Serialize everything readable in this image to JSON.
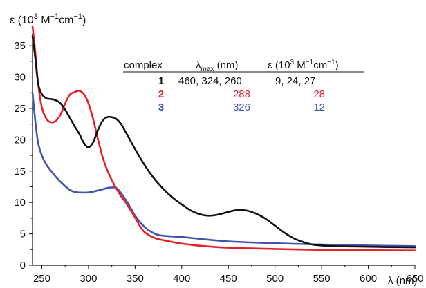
{
  "chart_data": {
    "type": "line",
    "ylabel_parts": {
      "pre": "ε (10",
      "exp1": "3",
      "mid": " M",
      "exp2": "−1",
      "cm": "cm",
      "exp3": "−1",
      "post": ")"
    },
    "xlabel": "λ (nm)",
    "xlim": [
      240,
      650
    ],
    "ylim": [
      0,
      37
    ],
    "xticks": [
      250,
      300,
      350,
      400,
      450,
      500,
      550,
      600,
      650
    ],
    "yticks": [
      0,
      5,
      10,
      15,
      20,
      25,
      30,
      35
    ],
    "grid": false,
    "legend": "table, top-right",
    "series": [
      {
        "name": "1",
        "color": "#111111",
        "x": [
          240,
          243,
          246,
          250,
          255,
          260,
          265,
          270,
          275,
          280,
          285,
          290,
          295,
          300,
          305,
          310,
          315,
          320,
          325,
          330,
          335,
          340,
          350,
          360,
          370,
          380,
          390,
          400,
          410,
          420,
          430,
          440,
          450,
          460,
          470,
          480,
          490,
          500,
          510,
          520,
          530,
          540,
          550,
          560,
          580,
          600,
          620,
          650
        ],
        "y": [
          36.5,
          33,
          29,
          27.3,
          26.6,
          26.5,
          26.3,
          25.8,
          24.8,
          23.5,
          22.2,
          21,
          19.5,
          18.8,
          19.6,
          21.5,
          23,
          23.6,
          23.6,
          23.3,
          22.5,
          21.2,
          18.5,
          16,
          13.9,
          12.2,
          10.8,
          9.7,
          8.7,
          8.1,
          7.9,
          8.1,
          8.5,
          8.8,
          8.7,
          8.2,
          7.4,
          6.3,
          5.2,
          4.3,
          3.7,
          3.3,
          3.15,
          3.05,
          3.0,
          2.95,
          2.9,
          2.85
        ]
      },
      {
        "name": "2",
        "color": "#e8202a",
        "x": [
          240,
          243,
          246,
          250,
          255,
          260,
          265,
          270,
          275,
          280,
          285,
          290,
          295,
          300,
          305,
          310,
          315,
          320,
          325,
          330,
          335,
          340,
          345,
          350,
          355,
          360,
          370,
          380,
          390,
          400,
          420,
          450,
          500,
          550,
          600,
          650
        ],
        "y": [
          38.5,
          34,
          29,
          25.2,
          23.3,
          22.8,
          23,
          24,
          25.8,
          27.2,
          27.6,
          27.8,
          27.3,
          25.8,
          23.3,
          20.2,
          17.3,
          15.2,
          13.6,
          12.2,
          11,
          10,
          8.8,
          7.6,
          6.3,
          5.3,
          4.4,
          4.0,
          3.7,
          3.45,
          3.1,
          2.8,
          2.6,
          2.45,
          2.4,
          2.35
        ]
      },
      {
        "name": "3",
        "color": "#3d55b0",
        "x": [
          240,
          243,
          246,
          250,
          255,
          260,
          265,
          270,
          275,
          280,
          285,
          290,
          300,
          310,
          320,
          325,
          330,
          335,
          340,
          345,
          350,
          360,
          370,
          380,
          400,
          420,
          450,
          500,
          550,
          600,
          650
        ],
        "y": [
          27.5,
          23,
          19.5,
          17.5,
          16,
          15,
          14.1,
          13.3,
          12.6,
          12,
          11.7,
          11.6,
          11.6,
          11.9,
          12.3,
          12.4,
          12.3,
          11.5,
          10.4,
          9.2,
          7.9,
          6.1,
          5.1,
          4.7,
          4.5,
          4.2,
          3.8,
          3.5,
          3.3,
          3.15,
          3.05
        ]
      }
    ],
    "table": {
      "headers": {
        "complex": "complex",
        "lambda_pre": "λ",
        "lambda_sub": "max",
        "lambda_post": " (nm)",
        "eps_pre": "ε (10",
        "eps_exp1": "3",
        "eps_mid": " M",
        "eps_exp2": "−1",
        "eps_cm": "cm",
        "eps_exp3": "−1",
        "eps_post": ")"
      },
      "rows": [
        {
          "complex": "1",
          "lambda": "460, 324, 260",
          "eps": "9, 24, 27",
          "color": "#111111"
        },
        {
          "complex": "2",
          "lambda": "288",
          "eps": "28",
          "color": "#e8202a"
        },
        {
          "complex": "3",
          "lambda": "326",
          "eps": "12",
          "color": "#3d55b0"
        }
      ]
    }
  }
}
